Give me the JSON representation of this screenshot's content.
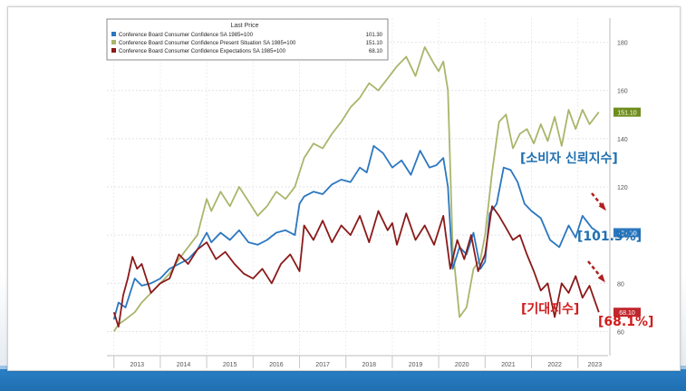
{
  "chart_data": {
    "type": "line",
    "legend_title": "Last Price",
    "legend_position": "top-left",
    "x_labels": [
      "2013",
      "2014",
      "2015",
      "2016",
      "2017",
      "2018",
      "2019",
      "2020",
      "2021",
      "2022",
      "2023"
    ],
    "xlim": [
      2012.85,
      2023.65
    ],
    "ylim": [
      50,
      190
    ],
    "y_ticks": [
      60,
      80,
      100,
      120,
      140,
      160,
      180
    ],
    "grid": true,
    "series": [
      {
        "name": "Conference Board Consumer Confidence SA 1985=100",
        "last_value": "101.30",
        "color": "#2b77c0",
        "x": [
          2013.0,
          2013.1,
          2013.25,
          2013.45,
          2013.6,
          2013.8,
          2014.0,
          2014.2,
          2014.4,
          2014.6,
          2014.8,
          2015.0,
          2015.1,
          2015.3,
          2015.5,
          2015.7,
          2015.9,
          2016.1,
          2016.3,
          2016.5,
          2016.7,
          2016.9,
          2017.0,
          2017.1,
          2017.3,
          2017.5,
          2017.7,
          2017.9,
          2018.1,
          2018.3,
          2018.45,
          2018.6,
          2018.8,
          2019.0,
          2019.2,
          2019.4,
          2019.6,
          2019.8,
          2019.95,
          2020.1,
          2020.2,
          2020.3,
          2020.45,
          2020.6,
          2020.75,
          2020.9,
          2021.0,
          2021.1,
          2021.25,
          2021.4,
          2021.55,
          2021.7,
          2021.85,
          2022.0,
          2022.2,
          2022.4,
          2022.6,
          2022.8,
          2022.95,
          2023.1,
          2023.3,
          2023.45
        ],
        "y": [
          65,
          72,
          70,
          82,
          79,
          80,
          82,
          86,
          88,
          90,
          94,
          101,
          97,
          101,
          98,
          102,
          97,
          96,
          98,
          101,
          102,
          100,
          113,
          116,
          118,
          117,
          121,
          123,
          122,
          128,
          126,
          137,
          134,
          128,
          131,
          125,
          135,
          128,
          129,
          132,
          120,
          86,
          95,
          92,
          101,
          86,
          89,
          109,
          113,
          128,
          127,
          122,
          113,
          110,
          107,
          98,
          95,
          104,
          99,
          108,
          103,
          101
        ]
      },
      {
        "name": "Conference Board Consumer Confidence Present Situation SA 1985=100",
        "last_value": "151.10",
        "color": "#a9b66b",
        "x": [
          2013.0,
          2013.1,
          2013.25,
          2013.45,
          2013.6,
          2013.8,
          2014.0,
          2014.2,
          2014.4,
          2014.6,
          2014.8,
          2015.0,
          2015.1,
          2015.3,
          2015.5,
          2015.7,
          2015.9,
          2016.1,
          2016.3,
          2016.5,
          2016.7,
          2016.9,
          2017.1,
          2017.3,
          2017.5,
          2017.7,
          2017.9,
          2018.1,
          2018.3,
          2018.5,
          2018.7,
          2018.9,
          2019.1,
          2019.3,
          2019.5,
          2019.7,
          2019.9,
          2020.0,
          2020.1,
          2020.2,
          2020.3,
          2020.45,
          2020.6,
          2020.75,
          2020.9,
          2021.0,
          2021.15,
          2021.3,
          2021.45,
          2021.6,
          2021.75,
          2021.9,
          2022.05,
          2022.2,
          2022.35,
          2022.5,
          2022.65,
          2022.8,
          2022.95,
          2023.1,
          2023.25,
          2023.45
        ],
        "y": [
          60,
          63,
          65,
          68,
          72,
          76,
          80,
          84,
          90,
          95,
          100,
          115,
          110,
          118,
          112,
          120,
          114,
          108,
          112,
          118,
          115,
          120,
          132,
          138,
          136,
          142,
          147,
          153,
          157,
          163,
          160,
          165,
          170,
          174,
          166,
          178,
          171,
          168,
          172,
          160,
          95,
          66,
          70,
          86,
          90,
          100,
          126,
          147,
          150,
          136,
          142,
          144,
          138,
          146,
          139,
          149,
          137,
          152,
          144,
          152,
          146,
          151
        ]
      },
      {
        "name": "Conference Board Consumer Confidence Expectations SA 1985=100",
        "last_value": "68.10",
        "color": "#8b1a1a",
        "x": [
          2013.0,
          2013.1,
          2013.2,
          2013.3,
          2013.4,
          2013.5,
          2013.6,
          2013.8,
          2014.0,
          2014.2,
          2014.4,
          2014.6,
          2014.8,
          2015.0,
          2015.2,
          2015.4,
          2015.6,
          2015.8,
          2016.0,
          2016.2,
          2016.4,
          2016.6,
          2016.8,
          2017.0,
          2017.1,
          2017.3,
          2017.5,
          2017.7,
          2017.9,
          2018.1,
          2018.3,
          2018.5,
          2018.7,
          2018.9,
          2019.0,
          2019.1,
          2019.3,
          2019.5,
          2019.7,
          2019.9,
          2020.1,
          2020.25,
          2020.4,
          2020.55,
          2020.7,
          2020.85,
          2021.0,
          2021.15,
          2021.3,
          2021.45,
          2021.6,
          2021.75,
          2021.9,
          2022.05,
          2022.2,
          2022.35,
          2022.5,
          2022.65,
          2022.8,
          2022.95,
          2023.1,
          2023.25,
          2023.45
        ],
        "y": [
          68,
          62,
          75,
          82,
          91,
          86,
          88,
          76,
          80,
          82,
          92,
          88,
          94,
          97,
          90,
          93,
          88,
          84,
          82,
          86,
          80,
          88,
          92,
          85,
          104,
          98,
          106,
          97,
          104,
          100,
          108,
          97,
          110,
          102,
          105,
          96,
          109,
          98,
          104,
          96,
          108,
          86,
          98,
          90,
          100,
          85,
          92,
          112,
          108,
          103,
          98,
          100,
          92,
          85,
          77,
          80,
          66,
          80,
          76,
          83,
          74,
          79,
          68
        ]
      }
    ]
  },
  "right_axis": {
    "tick_labels": [
      "180",
      "160",
      "140",
      "120",
      "100",
      "80",
      "60"
    ],
    "last_tags": [
      "151.10",
      "101.30",
      "68.10"
    ]
  },
  "annotations": {
    "ci_label": "[소비자 신뢰지수]",
    "ci_value": "[101.3%]",
    "exp_label": "[기대지수]",
    "exp_value": "[68.1%]"
  }
}
